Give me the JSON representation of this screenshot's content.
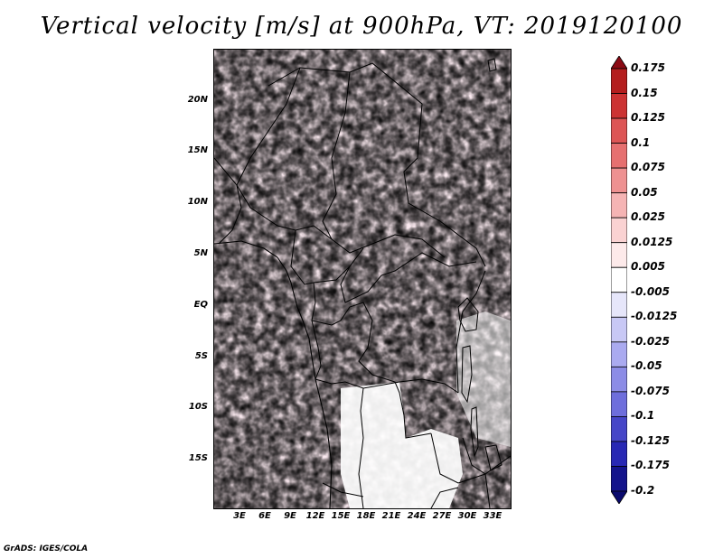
{
  "title": "Vertical velocity [m/s] at 900hPa, VT: 2019120100",
  "credit": "GrADS: IGES/COLA",
  "y_axis": {
    "labels": [
      "20N",
      "15N",
      "10N",
      "5N",
      "EQ",
      "5S",
      "10S",
      "15S"
    ]
  },
  "x_axis": {
    "labels": [
      "3E",
      "6E",
      "9E",
      "12E",
      "15E",
      "18E",
      "21E",
      "24E",
      "27E",
      "30E",
      "33E"
    ]
  },
  "colorbar": {
    "labels": [
      "0.175",
      "0.15",
      "0.125",
      "0.1",
      "0.075",
      "0.05",
      "0.025",
      "0.0125",
      "0.005",
      "-0.005",
      "-0.0125",
      "-0.025",
      "-0.05",
      "-0.075",
      "-0.1",
      "-0.125",
      "-0.175",
      "-0.2"
    ],
    "colors": [
      "#8b0a14",
      "#b41e1e",
      "#cc3333",
      "#dd5555",
      "#e67070",
      "#ee9191",
      "#f5b4b4",
      "#fad2d2",
      "#fdeaea",
      "#ffffff",
      "#e6e6fa",
      "#c8c8f5",
      "#aaaaf0",
      "#8c8ce6",
      "#6e6edc",
      "#4646c8",
      "#2828b4",
      "#14148c",
      "#0a0a6e"
    ]
  },
  "map": {
    "variable": "Vertical velocity",
    "units": "m/s",
    "level": "900hPa",
    "valid_time": "2019120100"
  }
}
